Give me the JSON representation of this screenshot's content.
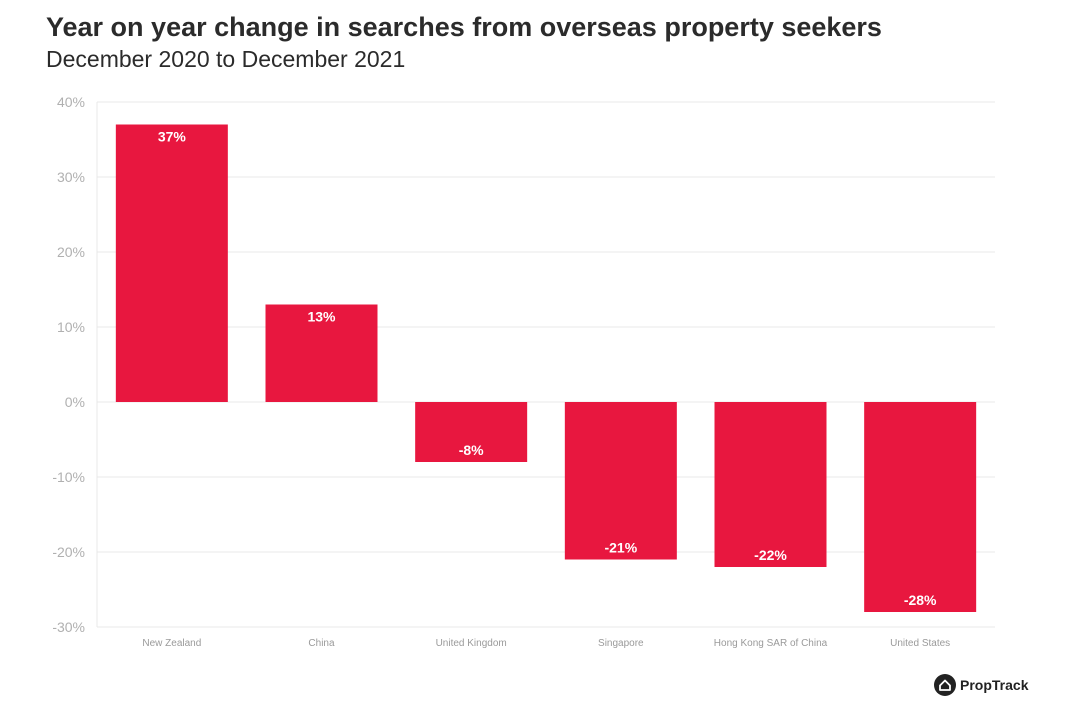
{
  "colors": {
    "bar": "#e8173f",
    "grid": "#e9e9e9",
    "text": "#2b2b2b"
  },
  "brand": {
    "name": "PropTrack",
    "icon": "house-icon"
  },
  "chart_data": {
    "type": "bar",
    "title": "Year on year change in searches from overseas property seekers",
    "subtitle": "December 2020 to December 2021",
    "xlabel": "",
    "ylabel": "",
    "ylim": [
      -30,
      40
    ],
    "yticks": [
      40,
      30,
      20,
      10,
      0,
      -10,
      -20,
      -30
    ],
    "ytick_labels": [
      "40%",
      "30%",
      "20%",
      "10%",
      "0%",
      "-10%",
      "-20%",
      "-30%"
    ],
    "grid": true,
    "categories": [
      "New Zealand",
      "China",
      "United Kingdom",
      "Singapore",
      "Hong Kong SAR of China",
      "United States"
    ],
    "values": [
      37,
      13,
      -8,
      -21,
      -22,
      -28
    ],
    "data_labels": [
      "37%",
      "13%",
      "-8%",
      "-21%",
      "-22%",
      "-28%"
    ]
  }
}
